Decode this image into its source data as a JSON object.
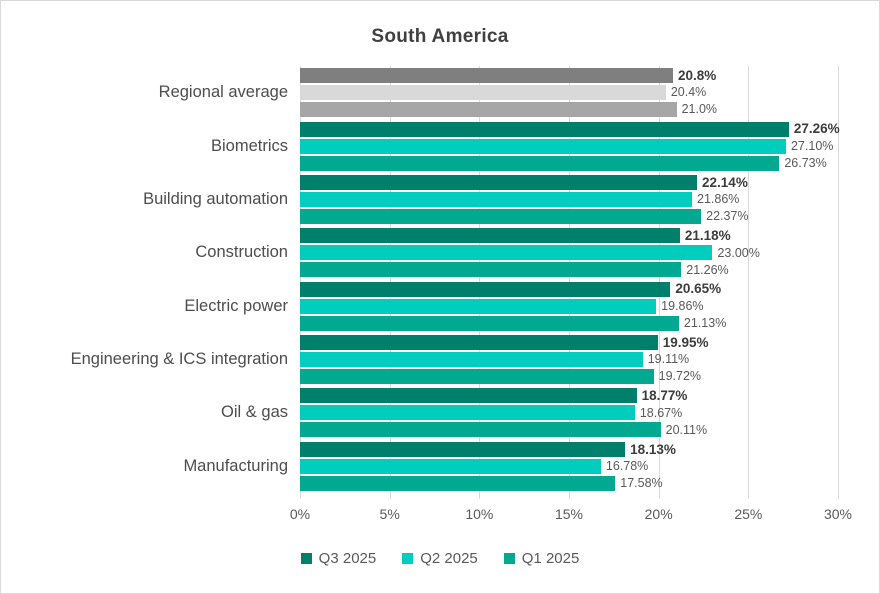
{
  "title": "South America",
  "chart_data": {
    "type": "bar",
    "orientation": "horizontal",
    "title": "South America",
    "xlabel": "",
    "ylabel": "",
    "xlim": [
      0,
      30
    ],
    "x_ticks": [
      "0%",
      "5%",
      "10%",
      "15%",
      "20%",
      "25%",
      "30%"
    ],
    "grid": true,
    "legend_position": "bottom",
    "categories": [
      "Regional average",
      "Biometrics",
      "Building automation",
      "Construction",
      "Electric power",
      "Engineering & ICS integration",
      "Oil & gas",
      "Manufacturing"
    ],
    "series": [
      {
        "name": "Q3 2025",
        "color": "#00806B",
        "regional_average_color": "#7F7F7F",
        "bold_value_labels": true,
        "values": [
          20.8,
          27.26,
          22.14,
          21.18,
          20.65,
          19.95,
          18.77,
          18.13
        ],
        "value_labels": [
          "20.8%",
          "27.26%",
          "22.14%",
          "21.18%",
          "20.65%",
          "19.95%",
          "18.77%",
          "18.13%"
        ]
      },
      {
        "name": "Q2 2025",
        "color": "#00CDBE",
        "regional_average_color": "#D9D9D9",
        "bold_value_labels": false,
        "values": [
          20.4,
          27.1,
          21.86,
          23.0,
          19.86,
          19.11,
          18.67,
          16.78
        ],
        "value_labels": [
          "20.4%",
          "27.10%",
          "21.86%",
          "23.00%",
          "19.86%",
          "19.11%",
          "18.67%",
          "16.78%"
        ]
      },
      {
        "name": "Q1 2025",
        "color": "#00A98F",
        "regional_average_color": "#A6A6A6",
        "bold_value_labels": false,
        "values": [
          21.0,
          26.73,
          22.37,
          21.26,
          21.13,
          19.72,
          20.11,
          17.58
        ],
        "value_labels": [
          "21.0%",
          "26.73%",
          "22.37%",
          "21.26%",
          "21.13%",
          "19.72%",
          "20.11%",
          "17.58%"
        ]
      }
    ]
  },
  "legend": {
    "items": [
      {
        "label": "Q3 2025",
        "color": "#00806B"
      },
      {
        "label": "Q2 2025",
        "color": "#00CDBE"
      },
      {
        "label": "Q1 2025",
        "color": "#00A98F"
      }
    ]
  },
  "colors": {
    "gridline": "#d9d9d9",
    "axis_text": "#595959",
    "title_text": "#404040",
    "frame_border": "#d9d9d9"
  }
}
